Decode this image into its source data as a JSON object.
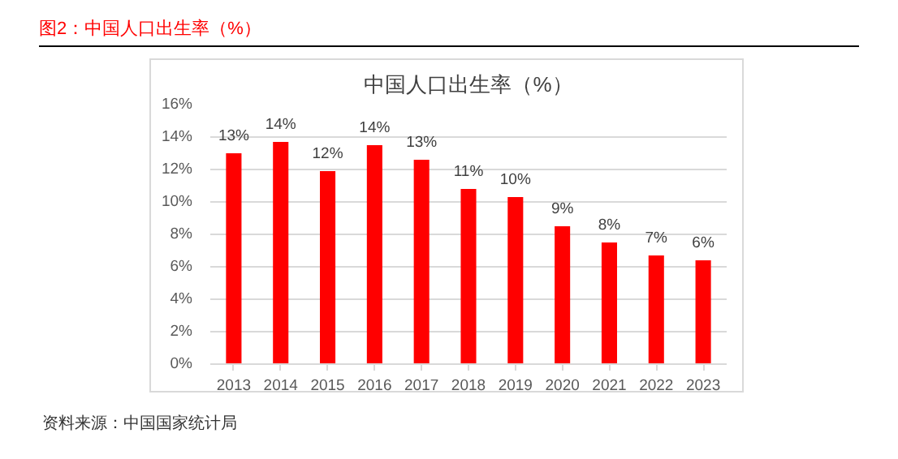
{
  "chart_data": {
    "type": "bar",
    "title": "中国人口出生率（%）",
    "categories": [
      "2013",
      "2014",
      "2015",
      "2016",
      "2017",
      "2018",
      "2019",
      "2020",
      "2021",
      "2022",
      "2023"
    ],
    "values": [
      13.0,
      13.7,
      11.9,
      13.5,
      12.6,
      10.8,
      10.3,
      8.5,
      7.5,
      6.7,
      6.4
    ],
    "value_labels": [
      "13%",
      "14%",
      "12%",
      "14%",
      "13%",
      "11%",
      "10%",
      "9%",
      "8%",
      "7%",
      "6%"
    ],
    "color": "#ff0000",
    "ylim": [
      0,
      16
    ],
    "yticks": [
      {
        "value": 0,
        "label": "0%"
      },
      {
        "value": 2,
        "label": "2%"
      },
      {
        "value": 4,
        "label": "4%"
      },
      {
        "value": 6,
        "label": "6%"
      },
      {
        "value": 8,
        "label": "8%"
      },
      {
        "value": 10,
        "label": "10%"
      },
      {
        "value": 12,
        "label": "12%"
      },
      {
        "value": 14,
        "label": "14%"
      },
      {
        "value": 16,
        "label": "16%"
      }
    ],
    "grid": "y",
    "annotations": [
      "图2：中国人口出生率（%）",
      "资料来源：中国国家统计局"
    ]
  }
}
